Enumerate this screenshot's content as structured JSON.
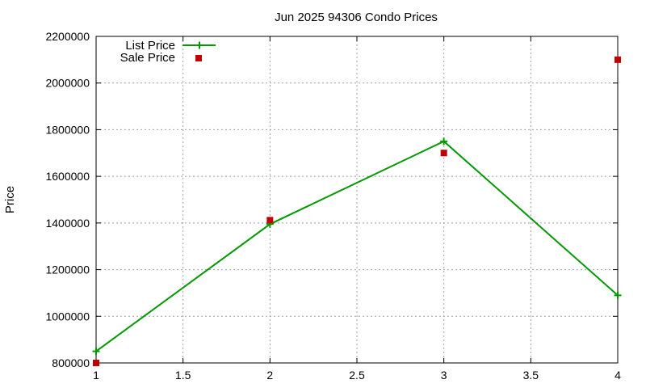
{
  "chart_data": {
    "type": "line",
    "title": "Jun 2025 94306 Condo Prices",
    "xlabel": "",
    "ylabel": "Price",
    "xlim": [
      1,
      4
    ],
    "ylim": [
      800000,
      2200000
    ],
    "x_ticks": [
      1,
      1.5,
      2,
      2.5,
      3,
      3.5,
      4
    ],
    "y_ticks": [
      800000,
      1000000,
      1200000,
      1400000,
      1600000,
      1800000,
      2000000,
      2200000
    ],
    "grid": true,
    "legend_position": "top-left",
    "series": [
      {
        "name": "List Price",
        "style": "linespoints",
        "color": "#009900",
        "x": [
          1,
          2,
          3,
          4
        ],
        "values": [
          850000,
          1395000,
          1750000,
          1090000
        ]
      },
      {
        "name": "Sale Price",
        "style": "points",
        "color": "#c00000",
        "x": [
          1,
          2,
          3,
          4
        ],
        "values": [
          800000,
          1412000,
          1700000,
          2100000
        ]
      }
    ]
  }
}
